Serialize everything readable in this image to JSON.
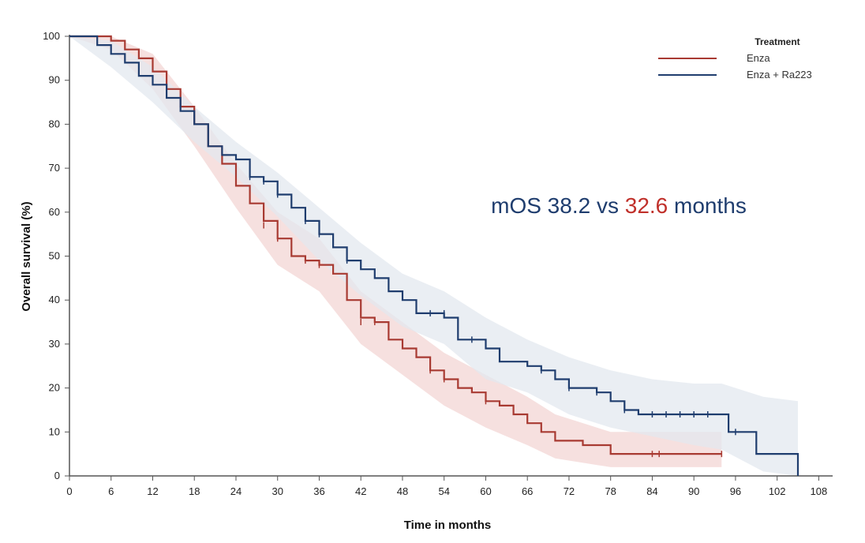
{
  "chart_data": {
    "type": "line",
    "title": "",
    "xlabel": "Time in months",
    "ylabel": "Overall survival (%)",
    "xlim": [
      0,
      110
    ],
    "ylim": [
      0,
      100
    ],
    "xticks": [
      0,
      6,
      12,
      18,
      24,
      30,
      36,
      42,
      48,
      54,
      60,
      66,
      72,
      78,
      84,
      90,
      96,
      102,
      108
    ],
    "yticks": [
      0,
      10,
      20,
      30,
      40,
      50,
      60,
      70,
      80,
      90,
      100
    ],
    "grid": false,
    "legend": {
      "title": "Treatment",
      "placement": "top-right",
      "entries": [
        "Enza",
        "Enza + Ra223"
      ]
    },
    "annotation": {
      "prefix": "mOS 38.2 vs ",
      "highlight": "32.6",
      "suffix": " months"
    },
    "series": [
      {
        "name": "Enza",
        "color": "#a83a32",
        "band_color": "#f3d6d4",
        "points": [
          [
            0,
            100
          ],
          [
            2,
            100
          ],
          [
            4,
            100
          ],
          [
            6,
            99
          ],
          [
            8,
            97
          ],
          [
            10,
            95
          ],
          [
            12,
            92
          ],
          [
            14,
            88
          ],
          [
            16,
            84
          ],
          [
            18,
            80
          ],
          [
            20,
            75
          ],
          [
            22,
            71
          ],
          [
            24,
            66
          ],
          [
            26,
            62
          ],
          [
            28,
            58
          ],
          [
            30,
            54
          ],
          [
            32,
            50
          ],
          [
            34,
            49
          ],
          [
            36,
            48
          ],
          [
            38,
            46
          ],
          [
            40,
            40
          ],
          [
            42,
            36
          ],
          [
            44,
            35
          ],
          [
            46,
            31
          ],
          [
            48,
            29
          ],
          [
            50,
            27
          ],
          [
            52,
            24
          ],
          [
            54,
            22
          ],
          [
            56,
            20
          ],
          [
            58,
            19
          ],
          [
            60,
            17
          ],
          [
            62,
            16
          ],
          [
            64,
            14
          ],
          [
            66,
            12
          ],
          [
            68,
            10
          ],
          [
            70,
            8
          ],
          [
            72,
            8
          ],
          [
            74,
            7
          ],
          [
            76,
            7
          ],
          [
            78,
            5
          ],
          [
            84,
            5
          ],
          [
            90,
            5
          ],
          [
            94,
            5
          ]
        ],
        "band_upper": [
          [
            0,
            100
          ],
          [
            6,
            100
          ],
          [
            12,
            96
          ],
          [
            18,
            84
          ],
          [
            24,
            71
          ],
          [
            30,
            60
          ],
          [
            36,
            54
          ],
          [
            42,
            42
          ],
          [
            48,
            35
          ],
          [
            54,
            28
          ],
          [
            60,
            23
          ],
          [
            66,
            18
          ],
          [
            70,
            14
          ],
          [
            78,
            10
          ],
          [
            84,
            10
          ],
          [
            90,
            10
          ],
          [
            94,
            10
          ]
        ],
        "band_lower": [
          [
            0,
            100
          ],
          [
            6,
            97
          ],
          [
            12,
            88
          ],
          [
            18,
            75
          ],
          [
            24,
            61
          ],
          [
            30,
            48
          ],
          [
            36,
            42
          ],
          [
            42,
            30
          ],
          [
            48,
            23
          ],
          [
            54,
            16
          ],
          [
            60,
            11
          ],
          [
            66,
            7
          ],
          [
            70,
            4
          ],
          [
            78,
            2
          ],
          [
            84,
            2
          ],
          [
            90,
            2
          ],
          [
            94,
            2
          ]
        ],
        "censor": [
          [
            28,
            57
          ],
          [
            30,
            54
          ],
          [
            34,
            49
          ],
          [
            36,
            48
          ],
          [
            38,
            47
          ],
          [
            42,
            35
          ],
          [
            44,
            35
          ],
          [
            52,
            24
          ],
          [
            54,
            22
          ],
          [
            60,
            17
          ],
          [
            64,
            15
          ],
          [
            66,
            13
          ],
          [
            84,
            5
          ],
          [
            85,
            5
          ],
          [
            94,
            5
          ]
        ]
      },
      {
        "name": "Enza + Ra223",
        "color": "#1f3d6e",
        "band_color": "#e3e8ef",
        "points": [
          [
            0,
            100
          ],
          [
            2,
            100
          ],
          [
            4,
            98
          ],
          [
            6,
            96
          ],
          [
            8,
            94
          ],
          [
            10,
            91
          ],
          [
            12,
            89
          ],
          [
            14,
            86
          ],
          [
            16,
            83
          ],
          [
            18,
            80
          ],
          [
            20,
            75
          ],
          [
            22,
            73
          ],
          [
            24,
            72
          ],
          [
            26,
            68
          ],
          [
            28,
            67
          ],
          [
            30,
            64
          ],
          [
            32,
            61
          ],
          [
            34,
            58
          ],
          [
            36,
            55
          ],
          [
            38,
            52
          ],
          [
            40,
            49
          ],
          [
            42,
            47
          ],
          [
            44,
            45
          ],
          [
            46,
            42
          ],
          [
            48,
            40
          ],
          [
            50,
            37
          ],
          [
            52,
            37
          ],
          [
            54,
            36
          ],
          [
            56,
            31
          ],
          [
            58,
            31
          ],
          [
            60,
            29
          ],
          [
            62,
            26
          ],
          [
            64,
            26
          ],
          [
            66,
            25
          ],
          [
            68,
            24
          ],
          [
            70,
            22
          ],
          [
            72,
            20
          ],
          [
            74,
            20
          ],
          [
            76,
            19
          ],
          [
            78,
            17
          ],
          [
            80,
            15
          ],
          [
            82,
            14
          ],
          [
            84,
            14
          ],
          [
            90,
            14
          ],
          [
            94,
            14
          ],
          [
            95,
            10
          ],
          [
            98,
            10
          ],
          [
            99,
            5
          ],
          [
            104,
            5
          ],
          [
            105,
            0
          ]
        ],
        "band_upper": [
          [
            0,
            100
          ],
          [
            6,
            99
          ],
          [
            12,
            93
          ],
          [
            18,
            84
          ],
          [
            24,
            76
          ],
          [
            30,
            69
          ],
          [
            36,
            61
          ],
          [
            42,
            53
          ],
          [
            48,
            46
          ],
          [
            54,
            42
          ],
          [
            60,
            36
          ],
          [
            66,
            31
          ],
          [
            72,
            27
          ],
          [
            78,
            24
          ],
          [
            84,
            22
          ],
          [
            90,
            21
          ],
          [
            94,
            21
          ],
          [
            100,
            18
          ],
          [
            105,
            17
          ]
        ],
        "band_lower": [
          [
            0,
            100
          ],
          [
            6,
            93
          ],
          [
            12,
            85
          ],
          [
            18,
            76
          ],
          [
            24,
            68
          ],
          [
            30,
            59
          ],
          [
            36,
            49
          ],
          [
            42,
            41
          ],
          [
            48,
            34
          ],
          [
            54,
            30
          ],
          [
            60,
            22
          ],
          [
            66,
            19
          ],
          [
            72,
            14
          ],
          [
            78,
            11
          ],
          [
            84,
            9
          ],
          [
            90,
            7
          ],
          [
            94,
            6
          ],
          [
            100,
            1
          ],
          [
            105,
            0
          ]
        ],
        "censor": [
          [
            26,
            68
          ],
          [
            28,
            67
          ],
          [
            30,
            64
          ],
          [
            34,
            58
          ],
          [
            36,
            55
          ],
          [
            40,
            49
          ],
          [
            46,
            43
          ],
          [
            48,
            41
          ],
          [
            52,
            37
          ],
          [
            54,
            37
          ],
          [
            58,
            31
          ],
          [
            60,
            30
          ],
          [
            68,
            24
          ],
          [
            72,
            20
          ],
          [
            76,
            19
          ],
          [
            80,
            15
          ],
          [
            84,
            14
          ],
          [
            86,
            14
          ],
          [
            88,
            14
          ],
          [
            90,
            14
          ],
          [
            92,
            14
          ],
          [
            96,
            10
          ]
        ]
      }
    ]
  }
}
